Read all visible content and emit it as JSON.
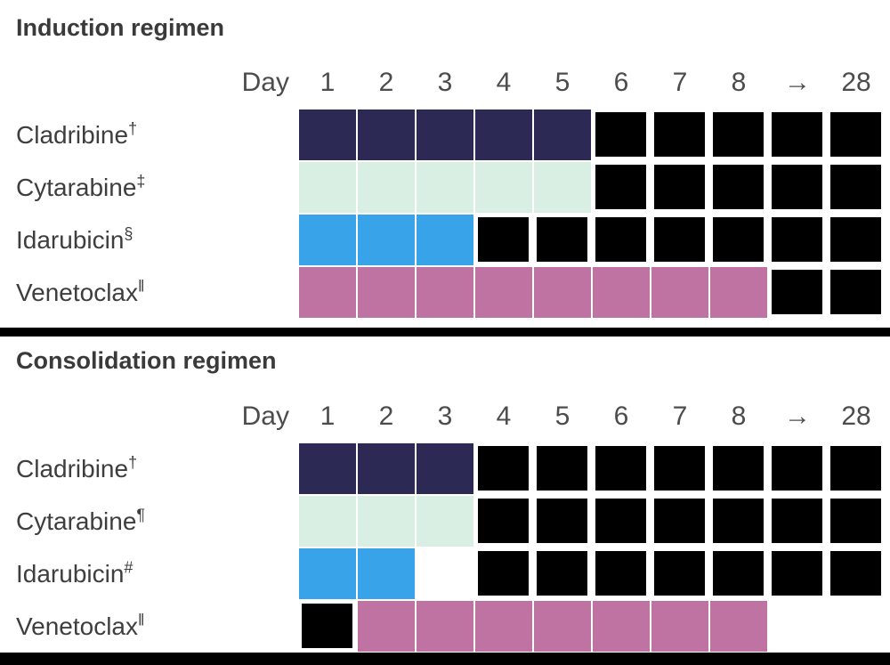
{
  "figure": {
    "divider_color": "#000000"
  },
  "chart_data": {
    "type": "table",
    "day_header_label": "Day",
    "columns": [
      "1",
      "2",
      "3",
      "4",
      "5",
      "6",
      "7",
      "8",
      "→",
      "28"
    ],
    "palette": {
      "navy": "#2c2a55",
      "mint": "#d9efe4",
      "blue": "#38a3e8",
      "pink": "#bf73a3",
      "black": "#000000"
    },
    "text_colors": {
      "title": "#3a3a3a",
      "labels": "#3e3e3e",
      "day_numbers": "#4c4c4c"
    },
    "charts": [
      {
        "id": "induction",
        "title": "Induction regimen",
        "rows": [
          {
            "drug": "Cladribine",
            "superscript": "†",
            "cells": [
              "navy",
              "navy",
              "navy",
              "navy",
              "navy",
              "black",
              "black",
              "black",
              "black",
              "black"
            ]
          },
          {
            "drug": "Cytarabine",
            "superscript": "‡",
            "cells": [
              "mint",
              "mint",
              "mint",
              "mint",
              "mint",
              "black",
              "black",
              "black",
              "black",
              "black"
            ]
          },
          {
            "drug": "Idarubicin",
            "superscript": "§",
            "cells": [
              "blue",
              "blue",
              "blue",
              "black",
              "black",
              "black",
              "black",
              "black",
              "black",
              "black"
            ]
          },
          {
            "drug": "Venetoclax",
            "superscript": "‖",
            "cells": [
              "pink",
              "pink",
              "pink",
              "pink",
              "pink",
              "pink",
              "pink",
              "pink",
              "black",
              "black"
            ]
          }
        ]
      },
      {
        "id": "consolidation",
        "title": "Consolidation regimen",
        "rows": [
          {
            "drug": "Cladribine",
            "superscript": "†",
            "cells": [
              "navy",
              "navy",
              "navy",
              "black",
              "black",
              "black",
              "black",
              "black",
              "black",
              "black"
            ]
          },
          {
            "drug": "Cytarabine",
            "superscript": "¶",
            "cells": [
              "mint",
              "mint",
              "mint",
              "black",
              "black",
              "black",
              "black",
              "black",
              "black",
              "black"
            ]
          },
          {
            "drug": "Idarubicin",
            "superscript": "#",
            "cells": [
              "blue",
              "blue",
              "empty",
              "black",
              "black",
              "black",
              "black",
              "black",
              "black",
              "black"
            ]
          },
          {
            "drug": "Venetoclax",
            "superscript": "‖",
            "cells": [
              "black",
              "pink",
              "pink",
              "pink",
              "pink",
              "pink",
              "pink",
              "pink",
              "empty",
              "empty"
            ]
          }
        ]
      }
    ]
  }
}
